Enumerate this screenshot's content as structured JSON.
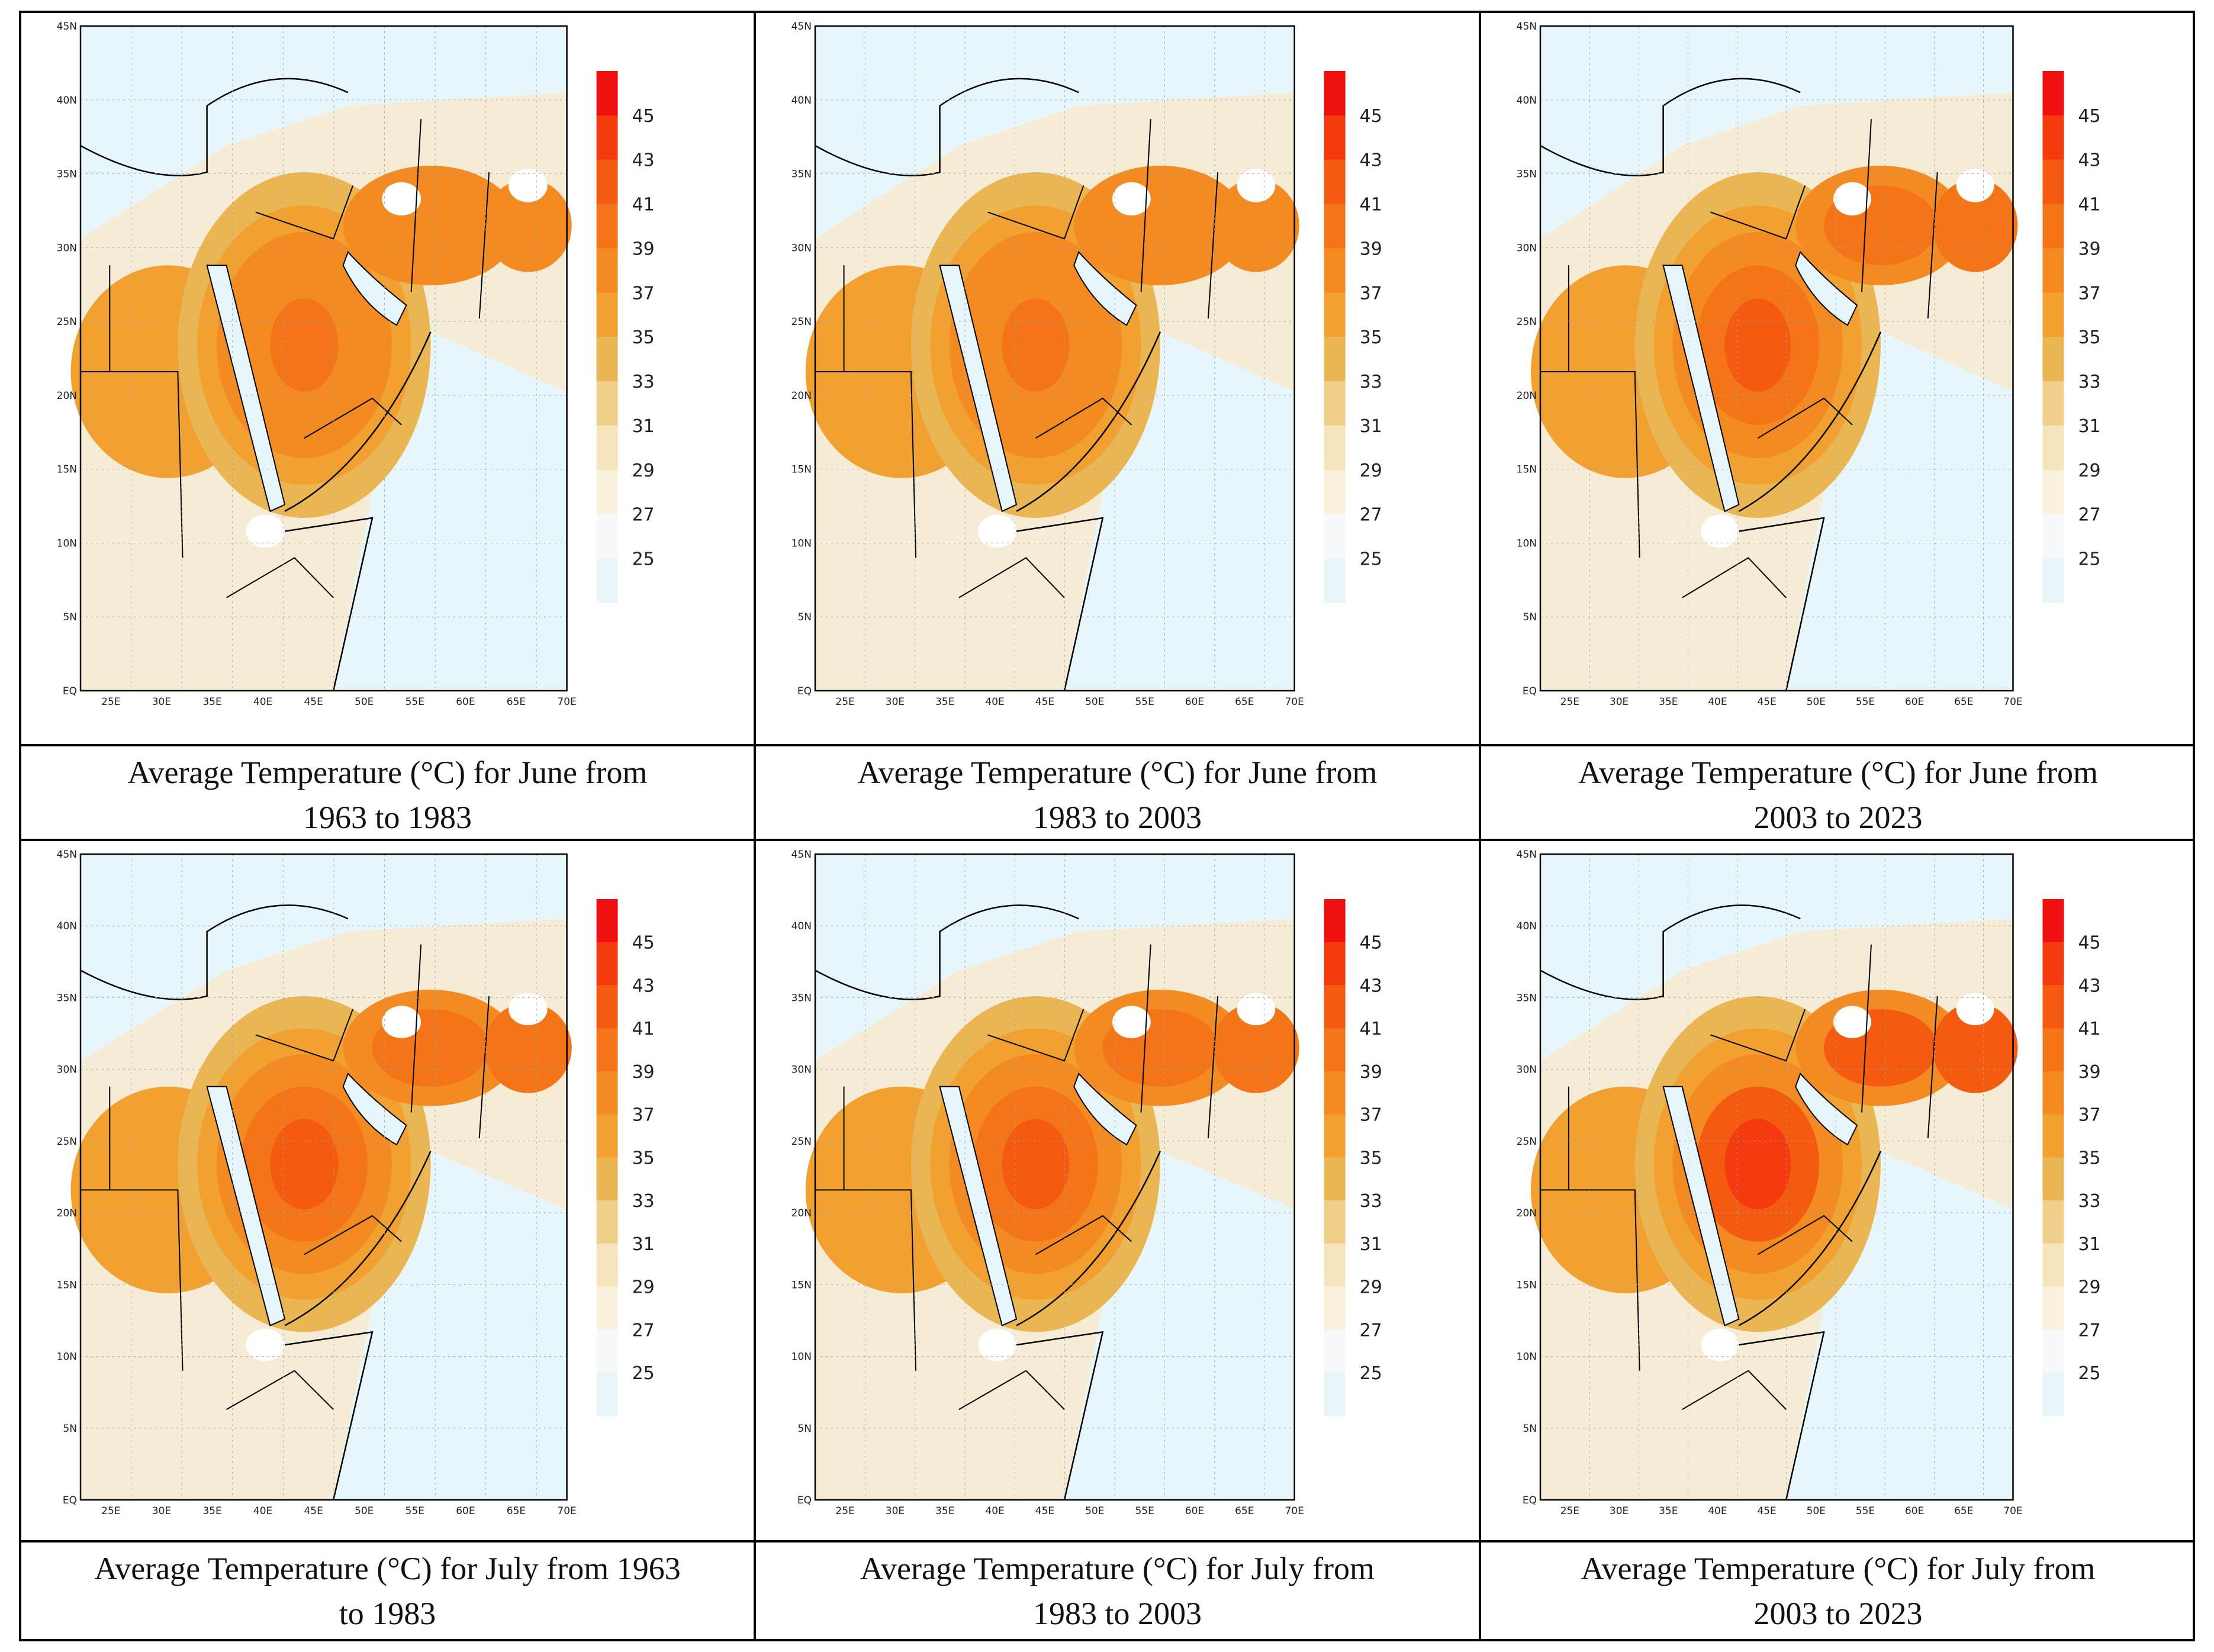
{
  "figure": {
    "panels": [
      {
        "caption_line1": "Average Temperature (°C) for June from",
        "caption_line2": "1963 to 1983",
        "month": "June",
        "period": "1963-1983",
        "hot_core_temp": 39
      },
      {
        "caption_line1": "Average Temperature (°C) for June from",
        "caption_line2": "1983 to 2003",
        "month": "June",
        "period": "1983-2003",
        "hot_core_temp": 39
      },
      {
        "caption_line1": "Average Temperature (°C) for June from",
        "caption_line2": "2003 to 2023",
        "month": "June",
        "period": "2003-2023",
        "hot_core_temp": 41
      },
      {
        "caption_line1": "Average Temperature (°C) for July from 1963",
        "caption_line2": "to 1983",
        "month": "July",
        "period": "1963-1983",
        "hot_core_temp": 41
      },
      {
        "caption_line1": "Average Temperature (°C) for July from",
        "caption_line2": "1983 to 2003",
        "month": "July",
        "period": "1983-2003",
        "hot_core_temp": 41
      },
      {
        "caption_line1": "Average Temperature (°C) for July from",
        "caption_line2": "2003 to 2023",
        "month": "July",
        "period": "2003-2023",
        "hot_core_temp": 43
      }
    ],
    "lat_labels": [
      "45N",
      "40N",
      "35N",
      "30N",
      "25N",
      "20N",
      "15N",
      "10N",
      "5N",
      "EQ"
    ],
    "lon_labels": [
      "25E",
      "30E",
      "35E",
      "40E",
      "45E",
      "50E",
      "55E",
      "60E",
      "65E",
      "70E"
    ],
    "colorbar_labels": [
      "45",
      "43",
      "41",
      "39",
      "37",
      "35",
      "33",
      "31",
      "29",
      "27",
      "25"
    ],
    "colorbar_colors": [
      "#f01010",
      "#f43a0e",
      "#f45a10",
      "#f47418",
      "#f48a22",
      "#f2a030",
      "#eab654",
      "#f0cf8a",
      "#f6e4bc",
      "#faf1dc",
      "#f6f8fa",
      "#e8f6fa"
    ]
  }
}
